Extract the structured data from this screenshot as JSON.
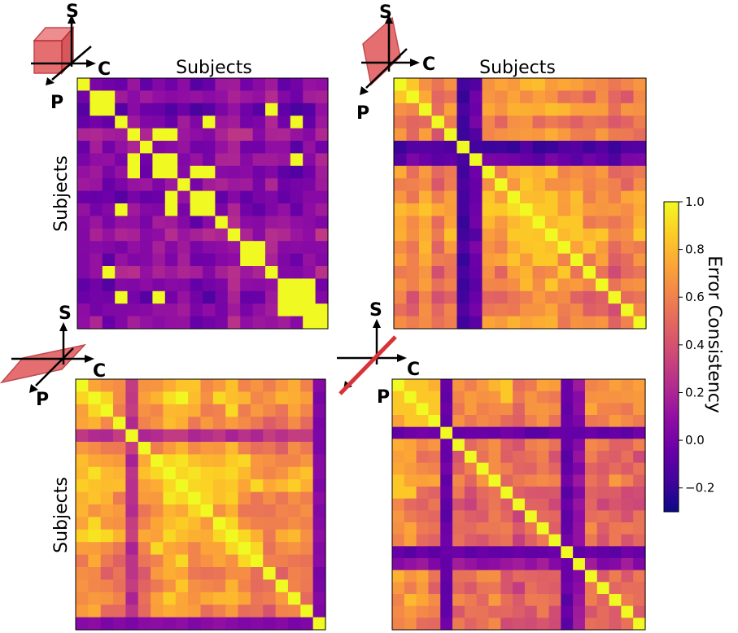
{
  "chart_data": [
    {
      "type": "heatmap",
      "panel": "top-left",
      "xlabel": "Subjects",
      "ylabel": "Subjects",
      "axis_icon": {
        "labels": [
          "S",
          "C",
          "P"
        ],
        "highlight": "cube"
      },
      "n": 20,
      "value_range": [
        -0.3,
        1.0
      ],
      "diag": 1.0,
      "base": 0.02,
      "pair_value": 1.0,
      "pairs": [
        [
          1,
          2
        ],
        [
          3,
          10
        ],
        [
          4,
          6
        ],
        [
          4,
          7
        ],
        [
          6,
          7
        ],
        [
          7,
          9
        ],
        [
          7,
          10
        ],
        [
          9,
          10
        ],
        [
          13,
          14
        ],
        [
          16,
          17
        ],
        [
          16,
          18
        ],
        [
          17,
          18
        ],
        [
          18,
          19
        ],
        [
          2,
          15
        ],
        [
          3,
          17
        ],
        [
          6,
          17
        ]
      ],
      "row_offsets": [
        0,
        0.05,
        -0.05,
        0,
        0.1,
        0,
        0.05,
        0,
        0.05,
        -0.05,
        0,
        0.05,
        0.12,
        0.05,
        0,
        0.1,
        0,
        -0.05,
        0,
        0.05
      ]
    },
    {
      "type": "heatmap",
      "panel": "top-right",
      "xlabel": "Subjects",
      "ylabel": "",
      "axis_icon": {
        "labels": [
          "S",
          "C",
          "P"
        ],
        "highlight": "sagittal-plane"
      },
      "n": 20,
      "value_range": [
        -0.3,
        1.0
      ],
      "diag": 1.0,
      "base": 0.5,
      "low_rows": [
        5
      ],
      "low_cols": [
        5
      ],
      "low_value": -0.15,
      "mid_rows": [
        6
      ],
      "mid_value": -0.05,
      "pair_value": 0.85,
      "pairs": [
        [
          10,
          11
        ],
        [
          10,
          12
        ],
        [
          11,
          13
        ],
        [
          12,
          14
        ],
        [
          13,
          15
        ],
        [
          9,
          12
        ],
        [
          11,
          14
        ],
        [
          0,
          1
        ],
        [
          8,
          10
        ]
      ],
      "row_offsets": [
        0.1,
        0,
        0.15,
        -0.05,
        0.05,
        0,
        0,
        0.1,
        0.05,
        0.15,
        0.2,
        0.15,
        0.2,
        0.1,
        0.1,
        0,
        0.05,
        -0.05,
        0,
        0.05
      ]
    },
    {
      "type": "heatmap",
      "panel": "bottom-left",
      "xlabel": "",
      "ylabel": "Subjects",
      "axis_icon": {
        "labels": [
          "S",
          "C",
          "P"
        ],
        "highlight": "axial-plane"
      },
      "n": 20,
      "value_range": [
        -0.3,
        1.0
      ],
      "diag": 1.0,
      "base": 0.55,
      "low_rows": [
        19
      ],
      "low_cols": [
        19
      ],
      "low_value": 0.05,
      "mid_rows": [
        4
      ],
      "mid_value": 0.25,
      "pair_value": 0.9,
      "pairs": [
        [
          1,
          2
        ],
        [
          1,
          11
        ],
        [
          2,
          12
        ],
        [
          6,
          7
        ],
        [
          7,
          8
        ],
        [
          8,
          9
        ],
        [
          9,
          10
        ],
        [
          11,
          12
        ],
        [
          12,
          13
        ],
        [
          13,
          14
        ],
        [
          6,
          13
        ],
        [
          7,
          12
        ],
        [
          8,
          14
        ]
      ],
      "row_offsets": [
        0.1,
        0.15,
        0.05,
        0,
        -0.1,
        0,
        0.1,
        0.2,
        0.2,
        0.1,
        0.05,
        0.1,
        0.15,
        0.05,
        0,
        -0.05,
        0,
        0.05,
        0,
        -0.1
      ]
    },
    {
      "type": "heatmap",
      "panel": "bottom-right",
      "xlabel": "",
      "ylabel": "",
      "axis_icon": {
        "labels": [
          "S",
          "C",
          "P"
        ],
        "highlight": "oblique-line"
      },
      "n": 21,
      "value_range": [
        -0.3,
        1.0
      ],
      "diag": 1.0,
      "base": 0.45,
      "low_rows": [
        4,
        14
      ],
      "low_cols": [
        4,
        14
      ],
      "low_value": -0.05,
      "mid_rows": [
        15
      ],
      "mid_value": 0.1,
      "pair_value": 0.85,
      "pairs": [
        [
          0,
          1
        ],
        [
          0,
          2
        ],
        [
          1,
          2
        ],
        [
          1,
          3
        ],
        [
          2,
          3
        ],
        [
          0,
          9
        ],
        [
          1,
          9
        ]
      ],
      "row_offsets": [
        0.2,
        0.2,
        0.15,
        0.1,
        0,
        0.05,
        0,
        0.05,
        0.1,
        0,
        -0.05,
        0,
        0.05,
        0,
        -0.05,
        0,
        0.05,
        0,
        0.05,
        0,
        0
      ]
    }
  ],
  "colorbar": {
    "label": "Error Consistency",
    "min": -0.3,
    "max": 1.0,
    "ticks": [
      "1.0",
      "0.8",
      "0.6",
      "0.4",
      "0.2",
      "0.0",
      "−0.2"
    ],
    "tick_values": [
      1.0,
      0.8,
      0.6,
      0.4,
      0.2,
      0.0,
      -0.2
    ],
    "colormap": "plasma"
  },
  "colors": {
    "highlight": "#d9333a",
    "axis": "#000000"
  }
}
